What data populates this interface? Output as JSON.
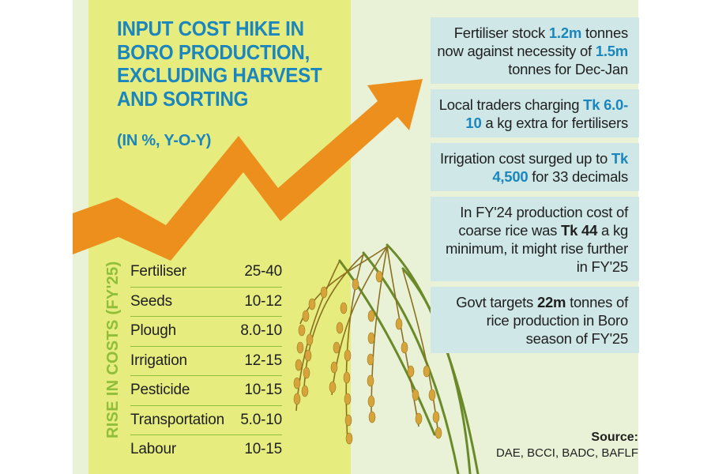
{
  "title": "INPUT COST HIKE IN BORO PRODUCTION, EXCLUDING HARVEST AND SORTING",
  "subtitle": "(IN %, Y-O-Y)",
  "vertical_label": "RISE IN COSTS (FY'25)",
  "colors": {
    "title_blue": "#1b86be",
    "arrow_orange": "#ec8f1c",
    "yellow_panel": "#e6ec7d",
    "background_panel": "#e9f2d6",
    "fact_box": "#cfe8e7",
    "green_accent": "#8fbe3a"
  },
  "costs": [
    {
      "label": "Fertiliser",
      "value": "25-40"
    },
    {
      "label": "Seeds",
      "value": "10-12"
    },
    {
      "label": "Plough",
      "value": "8.0-10"
    },
    {
      "label": "Irrigation",
      "value": "12-15"
    },
    {
      "label": "Pesticide",
      "value": "10-15"
    },
    {
      "label": "Transportation",
      "value": "5.0-10"
    },
    {
      "label": "Labour",
      "value": "10-15"
    }
  ],
  "facts": [
    {
      "pre": "Fertiliser stock ",
      "hl": "1.2m",
      "mid": " tonnes now against necessity of ",
      "hl2": "1.5m",
      "post": " tonnes for Dec-Jan"
    },
    {
      "pre": "Local traders charging ",
      "hl": "Tk 6.0-10",
      "mid": " a kg extra for fertilisers",
      "hl2": "",
      "post": ""
    },
    {
      "pre": "Irrigation cost surged up to ",
      "hl": "Tk 4,500",
      "mid": " for 33 decimals",
      "hl2": "",
      "post": ""
    },
    {
      "pre": "In FY'24 production cost of coarse rice was ",
      "hl": "Tk 44",
      "mid": " a kg minimum, it might rise further in FY'25",
      "hl2": "",
      "post": ""
    },
    {
      "pre": "Govt targets ",
      "hl": "22m",
      "mid": " tonnes of rice production in Boro season of FY'25",
      "hl2": "",
      "post": ""
    }
  ],
  "source": {
    "label": "Source:",
    "text": "DAE, BCCI, BADC, BAFLF"
  },
  "icons": {
    "arrow": "trend-up-arrow-icon",
    "rice": "rice-stalk-illustration"
  }
}
